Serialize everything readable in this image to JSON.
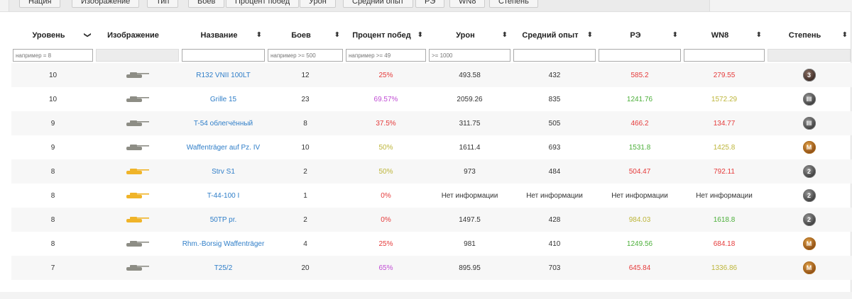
{
  "top_buttons": [
    "Нация",
    "Изображение",
    "Тип",
    "Боев",
    "Процент побед",
    "Урон",
    "Средний опыт",
    "РЭ",
    "WN8",
    "Степень"
  ],
  "columns": [
    {
      "label": "Уровень",
      "sort": "❯"
    },
    {
      "label": "Изображение",
      "sort": ""
    },
    {
      "label": "Название",
      "sort": "⬍"
    },
    {
      "label": "Боев",
      "sort": "⬍"
    },
    {
      "label": "Процент побед",
      "sort": "⬍"
    },
    {
      "label": "Урон",
      "sort": "⬍"
    },
    {
      "label": "Средний опыт",
      "sort": "⬍"
    },
    {
      "label": "РЭ",
      "sort": "⬍"
    },
    {
      "label": "WN8",
      "sort": "⬍"
    },
    {
      "label": "Степень",
      "sort": "⬍"
    }
  ],
  "filters": {
    "tier_placeholder": "например = 8",
    "battles_placeholder": "например >= 500",
    "winrate_placeholder": "например >= 49",
    "damage_placeholder": ">= 1000"
  },
  "colors": {
    "link": "#2f7ec8",
    "red": "#e53b3b",
    "purple": "#c04cd4",
    "olive": "#bdb53a",
    "green": "#4caf3a",
    "tank_gray": "#8d8d85",
    "tank_gold": "#f0b429"
  },
  "rows": [
    {
      "tier": "10",
      "tank_color": "gray",
      "name": "R132 VNII 100LT",
      "battles": "12",
      "winrate": "25%",
      "wr_class": "red",
      "damage": "493.58",
      "xp": "432",
      "re": "585.2",
      "re_class": "red",
      "wn8": "279.55",
      "wn8_class": "red",
      "badge": "3",
      "badge_type": "b3",
      "icon": "light-tank-icon"
    },
    {
      "tier": "10",
      "tank_color": "gray",
      "name": "Grille 15",
      "battles": "23",
      "winrate": "69.57%",
      "wr_class": "purple",
      "damage": "2059.26",
      "xp": "835",
      "re": "1241.76",
      "re_class": "green",
      "wn8": "1572.29",
      "wn8_class": "olive",
      "badge": "III",
      "badge_type": "plain",
      "icon": "td-icon"
    },
    {
      "tier": "9",
      "tank_color": "gray",
      "name": "T-54 облегчённый",
      "battles": "8",
      "winrate": "37.5%",
      "wr_class": "red",
      "damage": "311.75",
      "xp": "505",
      "re": "466.2",
      "re_class": "red",
      "wn8": "134.77",
      "wn8_class": "red",
      "badge": "III",
      "badge_type": "plain",
      "icon": "light-tank-icon"
    },
    {
      "tier": "9",
      "tank_color": "gray",
      "name": "Waffenträger auf Pz. IV",
      "battles": "10",
      "winrate": "50%",
      "wr_class": "olive",
      "damage": "1611.4",
      "xp": "693",
      "re": "1531.8",
      "re_class": "green",
      "wn8": "1425.8",
      "wn8_class": "olive",
      "badge": "M",
      "badge_type": "m",
      "icon": "td-icon"
    },
    {
      "tier": "8",
      "tank_color": "gold",
      "name": "Strv S1",
      "battles": "2",
      "winrate": "50%",
      "wr_class": "olive",
      "damage": "973",
      "xp": "484",
      "re": "504.47",
      "re_class": "red",
      "wn8": "792.11",
      "wn8_class": "red",
      "badge": "2",
      "badge_type": "plain",
      "icon": "premium-tank-icon"
    },
    {
      "tier": "8",
      "tank_color": "gold",
      "name": "T-44-100 I",
      "battles": "1",
      "winrate": "0%",
      "wr_class": "red",
      "damage": "Нет информации",
      "xp": "Нет информации",
      "re": "Нет информации",
      "re_class": "",
      "wn8": "Нет информации",
      "wn8_class": "",
      "badge": "2",
      "badge_type": "plain",
      "icon": "premium-tank-icon"
    },
    {
      "tier": "8",
      "tank_color": "gold",
      "name": "50TP pr.",
      "battles": "2",
      "winrate": "0%",
      "wr_class": "red",
      "damage": "1497.5",
      "xp": "428",
      "re": "984.03",
      "re_class": "olive",
      "wn8": "1618.8",
      "wn8_class": "green",
      "badge": "2",
      "badge_type": "plain",
      "icon": "premium-tank-icon"
    },
    {
      "tier": "8",
      "tank_color": "gray",
      "name": "Rhm.-Borsig Waffenträger",
      "battles": "4",
      "winrate": "25%",
      "wr_class": "red",
      "damage": "981",
      "xp": "410",
      "re": "1249.56",
      "re_class": "green",
      "wn8": "684.18",
      "wn8_class": "red",
      "badge": "M",
      "badge_type": "m",
      "icon": "td-icon"
    },
    {
      "tier": "7",
      "tank_color": "gray",
      "name": "T25/2",
      "battles": "20",
      "winrate": "65%",
      "wr_class": "purple",
      "damage": "895.95",
      "xp": "703",
      "re": "645.84",
      "re_class": "red",
      "wn8": "1336.86",
      "wn8_class": "olive",
      "badge": "M",
      "badge_type": "m",
      "icon": "td-icon"
    }
  ]
}
